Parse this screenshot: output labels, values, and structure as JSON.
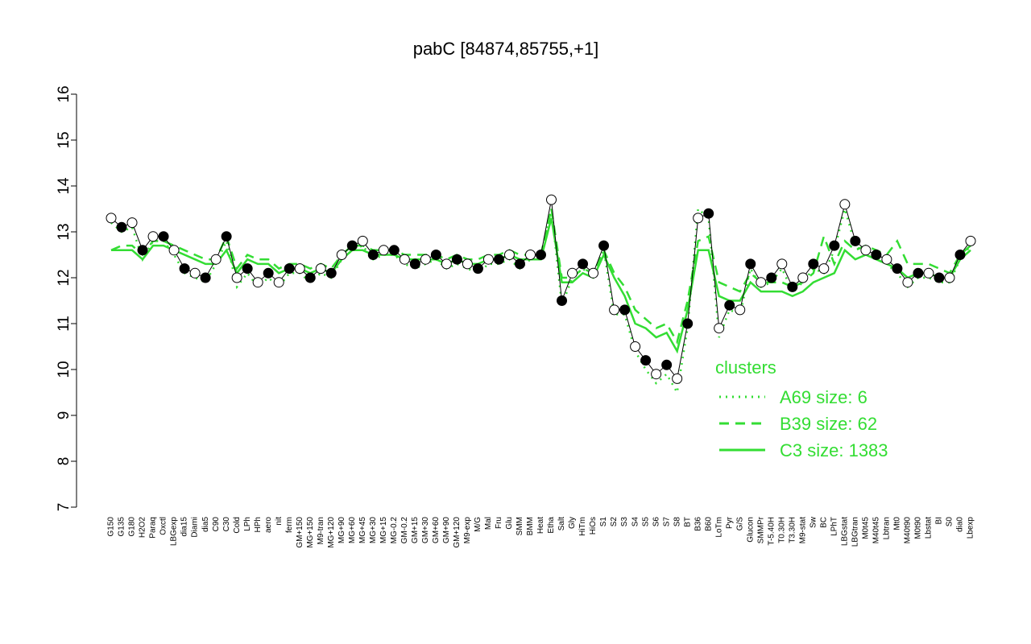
{
  "chart_data": {
    "type": "line",
    "title": "pabC [84874,85755,+1]",
    "categories": [
      "G150",
      "G135",
      "G180",
      "H2O2",
      "Paraq",
      "Oxctl",
      "LBGexp",
      "dia15",
      "Diami",
      "dia5",
      "C90",
      "C30",
      "Cold",
      "LPh",
      "HPh",
      "aero",
      "nit",
      "ferm",
      "GM+150",
      "MG+150",
      "M9-tran",
      "MG+120",
      "MG+90",
      "MG+60",
      "MG+45",
      "MG+30",
      "MG+15",
      "MG-0.2",
      "GM-0.2",
      "GM+15",
      "GM+30",
      "GM+60",
      "GM+90",
      "GM+120",
      "M9-exp",
      "M/G",
      "Mal",
      "Fru",
      "Glu",
      "SMM",
      "BMM",
      "Heat",
      "Etha",
      "Salt",
      "Gly",
      "HiTm",
      "HiOs",
      "S1",
      "S2",
      "S3",
      "S4",
      "S5",
      "S6",
      "S7",
      "S8",
      "BT",
      "B36",
      "B60",
      "LoTm",
      "Pyr",
      "G/S",
      "Glucon",
      "SMMPr",
      "T-5.40H",
      "T0.30H",
      "T3.30H",
      "M9-stat",
      "Sw",
      "BC",
      "LPhT",
      "LBGstat",
      "LBGtran",
      "M0t45",
      "M40t45",
      "Lbtran",
      "Mt0",
      "M40t90",
      "M0t90",
      "Lbstat",
      "BI",
      "S0",
      "dia0",
      "Lbexp"
    ],
    "values": [
      13.3,
      13.1,
      13.2,
      12.6,
      12.9,
      12.9,
      12.6,
      12.2,
      12.1,
      12.0,
      12.4,
      12.9,
      12.0,
      12.2,
      11.9,
      12.1,
      11.9,
      12.2,
      12.2,
      12.0,
      12.2,
      12.1,
      12.5,
      12.7,
      12.8,
      12.5,
      12.6,
      12.6,
      12.4,
      12.3,
      12.4,
      12.5,
      12.3,
      12.4,
      12.3,
      12.2,
      12.4,
      12.4,
      12.5,
      12.3,
      12.5,
      12.5,
      13.7,
      11.5,
      12.1,
      12.3,
      12.1,
      12.7,
      11.3,
      11.3,
      10.5,
      10.2,
      9.9,
      10.1,
      9.8,
      11.0,
      13.3,
      13.4,
      10.9,
      11.4,
      11.3,
      12.3,
      11.9,
      12.0,
      12.3,
      11.8,
      12.0,
      12.3,
      12.2,
      12.7,
      13.6,
      12.8,
      12.6,
      12.5,
      12.4,
      12.2,
      11.9,
      12.1,
      12.1,
      12.0,
      12.0,
      12.5,
      12.8
    ],
    "color": "#000000",
    "legend_title": "clusters",
    "legend_color": "#33dd33",
    "series": [
      {
        "name": "A69 size: 6",
        "color": "#33dd33",
        "dash": "dotted",
        "values": [
          13.2,
          13.0,
          13.1,
          12.4,
          12.8,
          12.8,
          12.5,
          12.1,
          12.0,
          11.9,
          12.3,
          12.8,
          11.8,
          12.1,
          11.8,
          12.0,
          11.8,
          12.1,
          12.1,
          11.9,
          12.1,
          12.0,
          12.4,
          12.6,
          12.7,
          12.4,
          12.5,
          12.5,
          12.3,
          12.2,
          12.3,
          12.4,
          12.2,
          12.3,
          12.2,
          12.1,
          12.3,
          12.3,
          12.4,
          12.2,
          12.4,
          12.4,
          13.5,
          11.4,
          12.0,
          12.2,
          12.0,
          12.6,
          11.2,
          11.2,
          10.4,
          10.0,
          9.7,
          9.9,
          9.5,
          10.9,
          13.5,
          13.3,
          10.7,
          11.3,
          11.2,
          12.2,
          11.8,
          11.9,
          12.2,
          11.7,
          11.9,
          12.2,
          12.1,
          12.6,
          13.5,
          12.7,
          12.5,
          12.4,
          12.3,
          12.1,
          11.8,
          12.0,
          12.0,
          11.9,
          11.9,
          12.4,
          12.7
        ]
      },
      {
        "name": "B39 size: 62",
        "color": "#33dd33",
        "dash": "dashed",
        "values": [
          12.6,
          12.7,
          12.7,
          12.5,
          12.8,
          12.8,
          12.7,
          12.6,
          12.5,
          12.4,
          12.4,
          12.9,
          12.2,
          12.5,
          12.4,
          12.4,
          12.2,
          12.3,
          12.3,
          12.2,
          12.3,
          12.2,
          12.5,
          12.7,
          12.7,
          12.6,
          12.6,
          12.6,
          12.5,
          12.5,
          12.5,
          12.5,
          12.4,
          12.5,
          12.4,
          12.4,
          12.5,
          12.5,
          12.6,
          12.5,
          12.5,
          12.5,
          13.5,
          12.0,
          12.0,
          12.2,
          12.1,
          12.6,
          12.1,
          11.8,
          11.3,
          11.1,
          10.9,
          11.0,
          10.6,
          11.5,
          12.8,
          12.9,
          11.9,
          11.8,
          11.7,
          12.1,
          11.9,
          11.9,
          11.9,
          11.8,
          11.9,
          12.1,
          12.9,
          12.3,
          12.8,
          12.6,
          12.7,
          12.6,
          12.5,
          12.8,
          12.3,
          12.3,
          12.3,
          12.2,
          12.1,
          12.5,
          12.7
        ]
      },
      {
        "name": "C3 size: 1383",
        "color": "#33dd33",
        "dash": "solid",
        "values": [
          12.6,
          12.6,
          12.6,
          12.4,
          12.7,
          12.7,
          12.6,
          12.5,
          12.4,
          12.3,
          12.3,
          12.6,
          12.1,
          12.4,
          12.3,
          12.3,
          12.1,
          12.2,
          12.2,
          12.1,
          12.2,
          12.1,
          12.4,
          12.6,
          12.6,
          12.5,
          12.5,
          12.5,
          12.4,
          12.4,
          12.4,
          12.4,
          12.3,
          12.4,
          12.3,
          12.3,
          12.4,
          12.4,
          12.5,
          12.4,
          12.4,
          12.4,
          13.3,
          11.9,
          11.9,
          12.1,
          12.0,
          12.5,
          12.0,
          11.6,
          11.0,
          10.9,
          10.7,
          10.8,
          10.4,
          11.3,
          12.6,
          12.6,
          11.6,
          11.5,
          11.5,
          11.9,
          11.7,
          11.7,
          11.7,
          11.6,
          11.7,
          11.9,
          12.0,
          12.1,
          12.6,
          12.4,
          12.5,
          12.4,
          12.3,
          12.2,
          12.0,
          12.1,
          12.1,
          12.0,
          12.0,
          12.4,
          12.6
        ]
      }
    ],
    "ylim": [
      7,
      16
    ],
    "yticks": [
      7,
      8,
      9,
      10,
      11,
      12,
      13,
      14,
      15,
      16
    ]
  }
}
